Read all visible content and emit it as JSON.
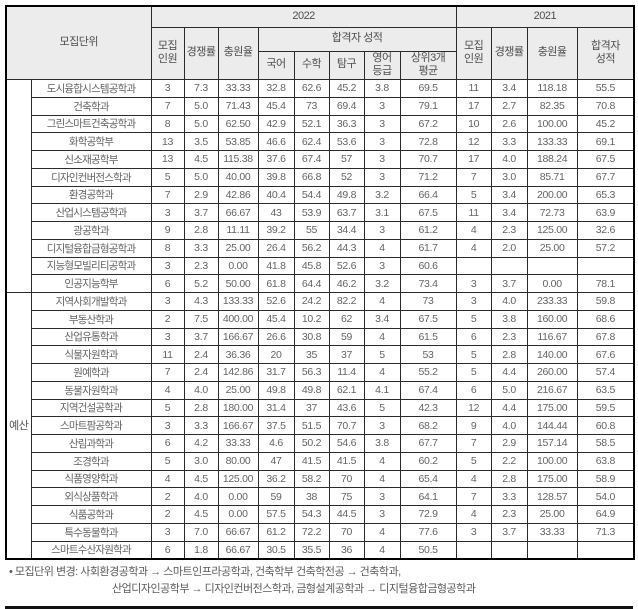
{
  "colors": {
    "header_bg": "#ececec",
    "text_gray": "#5c5c5c",
    "border": "#000000"
  },
  "table": {
    "header": {
      "unit": "모집단위",
      "year_2022": "2022",
      "year_2021": "2021",
      "quota_2022": "모집\n인원",
      "competition_2022": "경쟁률",
      "fill_rate_2022": "충원율",
      "pass_score_group_2022": "합격자 성적",
      "korean": "국어",
      "math": "수학",
      "inquiry": "탐구",
      "english_grade": "영어\n등급",
      "top3_avg": "상위3개\n평균",
      "quota_2021": "모집\n인원",
      "competition_2021": "경쟁률",
      "fill_rate_2021": "충원율",
      "pass_score_2021": "합격자\n성적"
    },
    "groups": [
      {
        "label": "",
        "rows": 12
      },
      {
        "label": "예산",
        "rows": 15
      }
    ],
    "rows": [
      {
        "name": "도시융합시스템공학과",
        "values": [
          "3",
          "7.3",
          "33.33",
          "32.8",
          "62.6",
          "45.2",
          "3.8",
          "69.5",
          "11",
          "3.4",
          "118.18",
          "55.5"
        ]
      },
      {
        "name": "건축학과",
        "values": [
          "7",
          "5.0",
          "71.43",
          "45.4",
          "73",
          "69.4",
          "3",
          "79.1",
          "17",
          "2.7",
          "82.35",
          "70.8"
        ]
      },
      {
        "name": "그린스마트건축공학과",
        "values": [
          "8",
          "5.0",
          "62.50",
          "42.9",
          "52.1",
          "36.3",
          "3",
          "67.2",
          "10",
          "2.6",
          "100.00",
          "45.2"
        ]
      },
      {
        "name": "화학공학부",
        "values": [
          "13",
          "3.5",
          "53.85",
          "46.6",
          "62.4",
          "53.6",
          "3",
          "72.8",
          "12",
          "3.3",
          "133.33",
          "69.1"
        ]
      },
      {
        "name": "신소재공학부",
        "values": [
          "13",
          "4.5",
          "115.38",
          "37.6",
          "67.4",
          "57",
          "3",
          "70.7",
          "17",
          "4.0",
          "188.24",
          "67.5"
        ]
      },
      {
        "name": "디자인컨버전스학과",
        "values": [
          "5",
          "5.0",
          "40.00",
          "39.8",
          "66.8",
          "52",
          "3",
          "71.2",
          "7",
          "3.0",
          "85.71",
          "67.7"
        ]
      },
      {
        "name": "환경공학과",
        "values": [
          "7",
          "2.9",
          "42.86",
          "40.4",
          "54.4",
          "49.8",
          "3.2",
          "66.4",
          "5",
          "3.4",
          "200.00",
          "65.3"
        ]
      },
      {
        "name": "산업시스템공학과",
        "values": [
          "3",
          "3.7",
          "66.67",
          "43",
          "53.9",
          "63.7",
          "3.1",
          "67.5",
          "11",
          "3.4",
          "72.73",
          "63.9"
        ]
      },
      {
        "name": "광공학과",
        "values": [
          "9",
          "2.8",
          "11.11",
          "39.2",
          "55",
          "34.4",
          "3",
          "61.2",
          "4",
          "2.3",
          "125.00",
          "32.6"
        ]
      },
      {
        "name": "디지털융합금형공학과",
        "values": [
          "8",
          "3.3",
          "25.00",
          "26.4",
          "56.2",
          "44.3",
          "4",
          "61.7",
          "4",
          "2.0",
          "25.00",
          "57.2"
        ]
      },
      {
        "name": "지능형모빌리티공학과",
        "values": [
          "3",
          "2.3",
          "0.00",
          "41.8",
          "45.8",
          "52.6",
          "3",
          "60.6",
          "",
          "",
          "",
          ""
        ]
      },
      {
        "name": "인공지능학부",
        "values": [
          "6",
          "5.2",
          "50.00",
          "61.8",
          "64.4",
          "46.2",
          "3.2",
          "73.4",
          "3",
          "3.7",
          "0.00",
          "78.1"
        ]
      },
      {
        "name": "지역사회개발학과",
        "values": [
          "3",
          "4.3",
          "133.33",
          "52.6",
          "24.2",
          "82.2",
          "4",
          "73",
          "3",
          "4.0",
          "233.33",
          "59.8"
        ]
      },
      {
        "name": "부동산학과",
        "values": [
          "2",
          "7.5",
          "400.00",
          "45.4",
          "10.2",
          "62",
          "3.4",
          "67.5",
          "5",
          "3.8",
          "160.00",
          "68.6"
        ]
      },
      {
        "name": "산업유통학과",
        "values": [
          "3",
          "3.7",
          "166.67",
          "26.6",
          "30.8",
          "59",
          "4",
          "61.5",
          "6",
          "2.3",
          "116.67",
          "67.8"
        ]
      },
      {
        "name": "식물자원학과",
        "values": [
          "11",
          "2.4",
          "36.36",
          "20",
          "35",
          "37",
          "5",
          "53",
          "5",
          "2.8",
          "140.00",
          "67.6"
        ]
      },
      {
        "name": "원예학과",
        "values": [
          "7",
          "2.4",
          "142.86",
          "31.7",
          "56.3",
          "11.4",
          "4",
          "55.2",
          "5",
          "4.4",
          "260.00",
          "57.4"
        ]
      },
      {
        "name": "동물자원학과",
        "values": [
          "4",
          "4.0",
          "25.00",
          "49.8",
          "49.8",
          "62.1",
          "4.1",
          "67.4",
          "6",
          "5.0",
          "216.67",
          "63.5"
        ]
      },
      {
        "name": "지역건설공학과",
        "values": [
          "5",
          "2.8",
          "180.00",
          "31.4",
          "37",
          "43.6",
          "5",
          "42.3",
          "12",
          "4.4",
          "175.00",
          "59.5"
        ]
      },
      {
        "name": "스마트팜공학과",
        "values": [
          "3",
          "3.3",
          "166.67",
          "37.5",
          "51.5",
          "70.7",
          "3",
          "68.2",
          "9",
          "4.0",
          "144.44",
          "60.8"
        ]
      },
      {
        "name": "산림과학과",
        "values": [
          "6",
          "4.2",
          "33.33",
          "4.6",
          "50.2",
          "54.6",
          "3.8",
          "67.7",
          "7",
          "2.9",
          "157.14",
          "58.5"
        ]
      },
      {
        "name": "조경학과",
        "values": [
          "5",
          "3.0",
          "80.00",
          "47",
          "41.5",
          "41.5",
          "4",
          "60.2",
          "5",
          "2.2",
          "100.00",
          "63.8"
        ]
      },
      {
        "name": "식품영양학과",
        "values": [
          "4",
          "4.5",
          "125.00",
          "36.2",
          "58.2",
          "70",
          "4",
          "65.4",
          "4",
          "2.8",
          "175.00",
          "58.9"
        ]
      },
      {
        "name": "외식상품학과",
        "values": [
          "2",
          "4.0",
          "0.00",
          "59",
          "38",
          "75",
          "3",
          "64.1",
          "7",
          "3.3",
          "128.57",
          "54.0"
        ]
      },
      {
        "name": "식품공학과",
        "values": [
          "2",
          "4.5",
          "0.00",
          "57.5",
          "54.3",
          "44.5",
          "3",
          "72.9",
          "4",
          "2.3",
          "25.00",
          "64.9"
        ]
      },
      {
        "name": "특수동물학과",
        "values": [
          "3",
          "7.0",
          "66.67",
          "61.2",
          "72.2",
          "70",
          "4",
          "77.6",
          "3",
          "3.7",
          "33.33",
          "71.3"
        ]
      },
      {
        "name": "스마트수산자원학과",
        "values": [
          "6",
          "1.8",
          "66.67",
          "30.5",
          "35.5",
          "36",
          "4",
          "50.5",
          "",
          "",
          "",
          ""
        ]
      }
    ]
  },
  "footnote": {
    "line1": "• 모집단위 변경: 사회환경공학과 → 스마트인프라공학과, 건축학부 건축학전공 → 건축학과,",
    "line2": "산업디자인공학부 → 디자인컨버전스학과, 금형설계공학과 → 디지털융합금형공학과"
  }
}
